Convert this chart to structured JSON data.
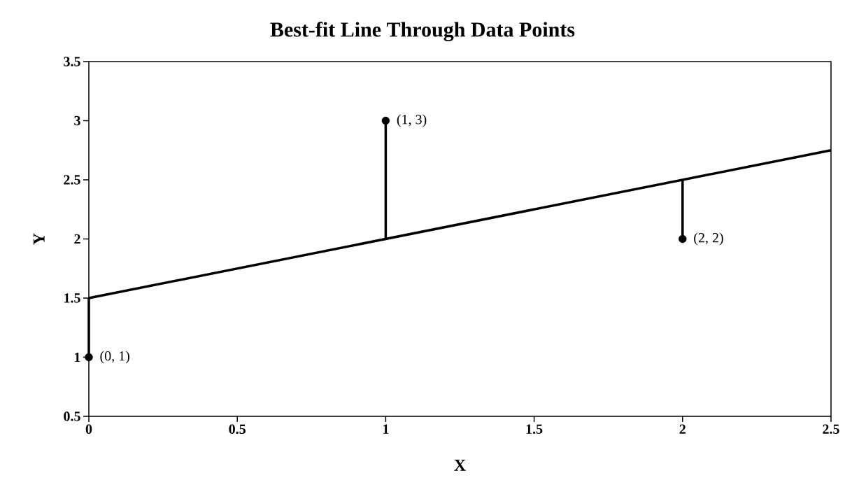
{
  "chart_data": {
    "type": "scatter",
    "title": "Best-fit Line Through Data Points",
    "xlabel": "X",
    "ylabel": "Y",
    "xlim": [
      0,
      2.5
    ],
    "ylim": [
      0.5,
      3.5
    ],
    "xticks": [
      0,
      0.5,
      1,
      1.5,
      2,
      2.5
    ],
    "yticks": [
      0.5,
      1,
      1.5,
      2,
      2.5,
      3,
      3.5
    ],
    "series": [
      {
        "type": "line",
        "x": [
          0,
          2.5
        ],
        "values": [
          1.5,
          2.75
        ],
        "color": "#000000",
        "marker": "none"
      },
      {
        "type": "line",
        "x": [
          0,
          0
        ],
        "values": [
          1,
          1.5
        ],
        "color": "#000000",
        "marker": "none"
      },
      {
        "type": "line",
        "x": [
          1,
          1
        ],
        "values": [
          3,
          2
        ],
        "color": "#000000",
        "marker": "none"
      },
      {
        "type": "line",
        "x": [
          2,
          2
        ],
        "values": [
          2,
          2.5
        ],
        "color": "#000000",
        "marker": "none"
      },
      {
        "x": [
          0,
          1,
          2
        ],
        "values": [
          1,
          3,
          2
        ],
        "color": "#000000",
        "marker": "circle"
      }
    ],
    "annotations": [
      {
        "text": "(0, 1)",
        "x": 0,
        "y": 1
      },
      {
        "text": "(1, 3)",
        "x": 1,
        "y": 3
      },
      {
        "text": "(2, 2)",
        "x": 2,
        "y": 2
      }
    ]
  }
}
